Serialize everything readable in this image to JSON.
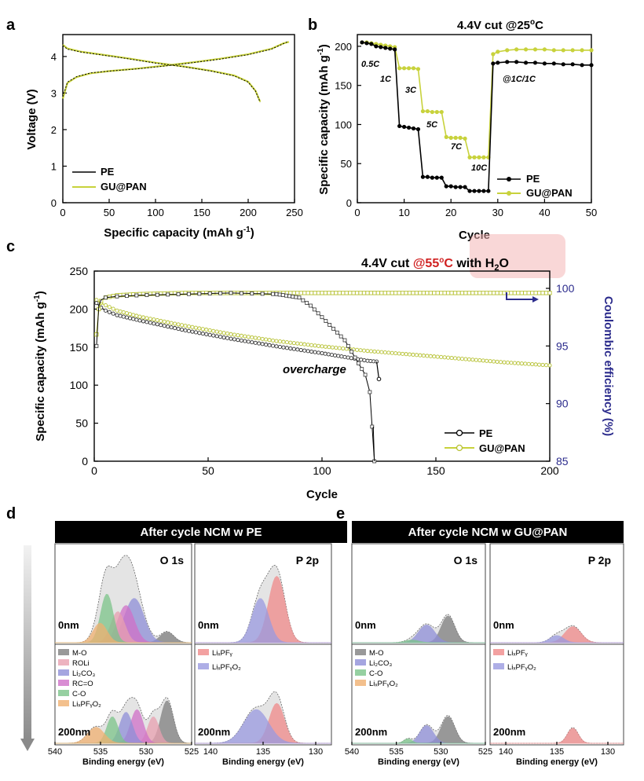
{
  "colors": {
    "pe": "#000000",
    "gu": "#c8d23c",
    "gu_dark": "#9aa82a",
    "right_axis": "#2b2b8c",
    "highlight": "#f2a8a8",
    "temp_red": "#d02020",
    "arrow": "#2b2b8c"
  },
  "panel_a": {
    "label": "a",
    "xlabel": "Specific capacity (mAh g",
    "xlabel_sup": "-1",
    "xlabel_end": ")",
    "ylabel": "Voltage (V)",
    "x_ticks": [
      "0",
      "50",
      "100",
      "150",
      "200",
      "250"
    ],
    "y_ticks": [
      "0",
      "1",
      "2",
      "3",
      "4"
    ],
    "legend": [
      "PE",
      "GU@PAN"
    ]
  },
  "panel_b": {
    "label": "b",
    "title": "4.4V cut @25°C",
    "title_pre": "4.4V cut @25",
    "title_sup": "o",
    "title_post": "C",
    "xlabel": "Cycle",
    "ylabel": "Specific capacity (mAh g",
    "ylabel_sup": "-1",
    "ylabel_end": ")",
    "x_ticks": [
      "0",
      "10",
      "20",
      "30",
      "40",
      "50"
    ],
    "y_ticks": [
      "0",
      "50",
      "100",
      "150",
      "200"
    ],
    "rate_labels": [
      "0.5C",
      "1C",
      "3C",
      "5C",
      "7C",
      "10C",
      "@1C/1C"
    ],
    "legend": [
      "PE",
      "GU@PAN"
    ]
  },
  "panel_c": {
    "label": "c",
    "title_pre": "4.4V cut ",
    "title_red": "@55",
    "title_red_sup": "o",
    "title_red_post": "C",
    "title_post": " with H",
    "title_sub": "2",
    "title_end": "O",
    "xlabel": "Cycle",
    "ylabel": "Specific capacity (mAh g",
    "ylabel_sup": "-1",
    "ylabel_end": ")",
    "ylabel_right": "Coulombic efficiency (%)",
    "x_ticks": [
      "0",
      "50",
      "100",
      "150",
      "200"
    ],
    "y_ticks": [
      "0",
      "50",
      "100",
      "150",
      "200",
      "250"
    ],
    "y2_ticks": [
      "85",
      "90",
      "95",
      "100"
    ],
    "annotation": "overcharge",
    "legend": [
      "PE",
      "GU@PAN"
    ]
  },
  "panel_d": {
    "label": "d",
    "header": "After cycle NCM w PE",
    "o_label": "O 1s",
    "p_label": "P 2p",
    "depth_top": "0nm",
    "depth_bot": "200nm",
    "o_components": [
      "M-O",
      "ROLi",
      "Li",
      "RC=O",
      "C-O",
      "Li"
    ],
    "o_components_full": [
      "M-O",
      "ROLi",
      "Li2CO3",
      "RC=O",
      "C-O",
      "LixPFyOz"
    ],
    "p_components_full": [
      "LixPFy",
      "LixPFyOz"
    ],
    "o_xticks": [
      "540",
      "535",
      "530",
      "525"
    ],
    "p_xticks": [
      "140",
      "135",
      "130"
    ],
    "xlabel": "Binding energy (eV)"
  },
  "panel_e": {
    "label": "e",
    "header": "After cycle NCM w GU@PAN",
    "o_label": "O 1s",
    "p_label": "P 2p",
    "depth_top": "0nm",
    "depth_bot": "200nm",
    "o_components_full": [
      "M-O",
      "Li2CO3",
      "C-O",
      "LixPFyOz"
    ],
    "p_components_full": [
      "LixPFy",
      "LixPFyOz"
    ],
    "o_xticks": [
      "540",
      "535",
      "530",
      "525"
    ],
    "p_xticks": [
      "140",
      "135",
      "130"
    ],
    "xlabel": "Binding energy (eV)"
  },
  "chart_data": [
    {
      "type": "line",
      "title": "",
      "xlabel": "Specific capacity (mAh g-1)",
      "ylabel": "Voltage (V)",
      "xlim": [
        0,
        250
      ],
      "ylim": [
        0,
        4.6
      ],
      "series": [
        {
          "name": "PE charge",
          "x": [
            0,
            5,
            15,
            30,
            50,
            80,
            110,
            140,
            170,
            200,
            225,
            238,
            242
          ],
          "y": [
            2.9,
            3.3,
            3.45,
            3.55,
            3.6,
            3.66,
            3.74,
            3.83,
            3.93,
            4.05,
            4.2,
            4.35,
            4.4
          ]
        },
        {
          "name": "PE discharge",
          "x": [
            0,
            5,
            20,
            40,
            70,
            100,
            130,
            160,
            185,
            200,
            208,
            213
          ],
          "y": [
            4.3,
            4.2,
            4.12,
            4.05,
            3.94,
            3.82,
            3.72,
            3.6,
            3.47,
            3.3,
            3.05,
            2.75
          ]
        },
        {
          "name": "GU@PAN charge",
          "x": [
            0,
            5,
            15,
            30,
            50,
            80,
            110,
            140,
            170,
            200,
            225,
            238,
            244
          ],
          "y": [
            2.85,
            3.28,
            3.44,
            3.54,
            3.6,
            3.67,
            3.75,
            3.84,
            3.94,
            4.06,
            4.21,
            4.36,
            4.4
          ]
        },
        {
          "name": "GU@PAN discharge",
          "x": [
            0,
            5,
            20,
            40,
            70,
            100,
            130,
            160,
            185,
            200,
            208,
            213
          ],
          "y": [
            4.32,
            4.22,
            4.13,
            4.06,
            3.95,
            3.83,
            3.73,
            3.61,
            3.48,
            3.31,
            3.06,
            2.76
          ]
        }
      ]
    },
    {
      "type": "line",
      "title": "4.4V cut @25°C",
      "xlabel": "Cycle",
      "ylabel": "Specific capacity (mAh g-1)",
      "xlim": [
        0,
        50
      ],
      "ylim": [
        0,
        215
      ],
      "series": [
        {
          "name": "PE",
          "x": [
            1,
            2,
            3,
            4,
            5,
            6,
            7,
            8,
            9,
            10,
            11,
            12,
            13,
            14,
            15,
            16,
            17,
            18,
            19,
            20,
            21,
            22,
            23,
            24,
            25,
            26,
            27,
            28,
            29,
            30,
            32,
            34,
            36,
            38,
            40,
            42,
            44,
            46,
            48,
            50
          ],
          "y": [
            205,
            204,
            203,
            200,
            199,
            198,
            197,
            196,
            98,
            97,
            96,
            95,
            94,
            33,
            33,
            32,
            32,
            32,
            21,
            21,
            20,
            20,
            20,
            15,
            15,
            15,
            15,
            15,
            178,
            179,
            180,
            180,
            179,
            179,
            178,
            178,
            177,
            177,
            176,
            176
          ]
        },
        {
          "name": "GU@PAN",
          "x": [
            1,
            2,
            3,
            4,
            5,
            6,
            7,
            8,
            9,
            10,
            11,
            12,
            13,
            14,
            15,
            16,
            17,
            18,
            19,
            20,
            21,
            22,
            23,
            24,
            25,
            26,
            27,
            28,
            29,
            30,
            32,
            34,
            36,
            38,
            40,
            42,
            44,
            46,
            48,
            50
          ],
          "y": [
            205,
            205,
            204,
            203,
            202,
            201,
            200,
            199,
            172,
            172,
            172,
            172,
            171,
            117,
            117,
            116,
            116,
            116,
            84,
            83,
            83,
            83,
            82,
            58,
            58,
            58,
            58,
            58,
            190,
            193,
            195,
            196,
            196,
            196,
            196,
            195,
            195,
            195,
            195,
            195
          ]
        }
      ]
    },
    {
      "type": "line",
      "title": "4.4V cut @55°C with H2O",
      "xlabel": "Cycle",
      "ylabel": "Specific capacity (mAh g-1)",
      "ylabel_right": "Coulombic efficiency (%)",
      "xlim": [
        0,
        200
      ],
      "ylim": [
        0,
        250
      ],
      "y2lim": [
        85,
        101.5
      ],
      "series": [
        {
          "name": "PE capacity",
          "x": [
            1,
            3,
            5,
            10,
            20,
            40,
            60,
            80,
            100,
            110,
            120,
            124
          ],
          "y": [
            208,
            202,
            198,
            192,
            185,
            172,
            161,
            151,
            142,
            137,
            132,
            131
          ]
        },
        {
          "name": "PE capacity end",
          "x": [
            124,
            125
          ],
          "y": [
            131,
            108
          ]
        },
        {
          "name": "GU@PAN capacity",
          "x": [
            1,
            3,
            5,
            10,
            20,
            40,
            60,
            80,
            100,
            120,
            140,
            160,
            180,
            200
          ],
          "y": [
            212,
            208,
            205,
            198,
            190,
            178,
            167,
            158,
            151,
            145,
            140,
            135,
            130,
            126
          ]
        },
        {
          "name": "PE coulombic efficiency",
          "x": [
            1,
            2,
            3,
            5,
            10,
            20,
            40,
            60,
            80,
            90,
            95,
            100,
            105,
            110,
            113,
            116,
            119,
            121,
            122,
            123
          ],
          "y": [
            95,
            98.5,
            99.0,
            99.2,
            99.3,
            99.4,
            99.5,
            99.6,
            99.5,
            99.2,
            98.5,
            97.5,
            96.5,
            95.5,
            94.5,
            93.5,
            92.5,
            91,
            88,
            85
          ]
        },
        {
          "name": "GU@PAN coulombic efficiency",
          "x": [
            1,
            2,
            3,
            5,
            10,
            20,
            40,
            60,
            80,
            100,
            120,
            140,
            160,
            180,
            200
          ],
          "y": [
            96,
            98.2,
            98.9,
            99.2,
            99.4,
            99.5,
            99.6,
            99.6,
            99.6,
            99.6,
            99.6,
            99.6,
            99.6,
            99.6,
            99.6
          ]
        }
      ]
    }
  ]
}
